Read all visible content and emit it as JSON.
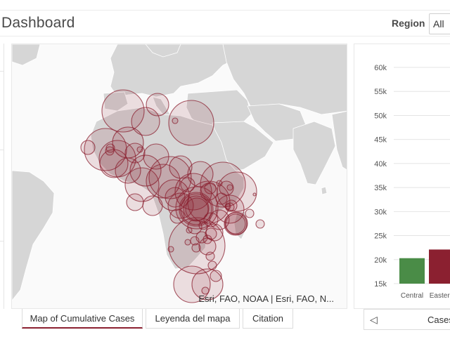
{
  "header": {
    "title": "Dashboard",
    "region_label": "Region",
    "region_value": "All"
  },
  "map": {
    "attribution": "Esri, FAO, NOAA | Esri, FAO, N...",
    "land_color": "#d6d6d6",
    "bubble_fill": "#8b2030",
    "bubble_stroke": "#8b2030"
  },
  "tabs": [
    {
      "label": "Map of Cumulative Cases",
      "active": true
    },
    {
      "label": "Leyenda del mapa",
      "active": false
    },
    {
      "label": "Citation",
      "active": false
    }
  ],
  "chart_tabs": {
    "prev_icon": "triangle-left-icon",
    "label": "Cases"
  },
  "chart_data": {
    "type": "bar",
    "title": "",
    "xlabel": "",
    "ylabel": "",
    "categories": [
      "Central",
      "Eastern"
    ],
    "values": [
      20300,
      22100
    ],
    "colors": [
      "#4a8c47",
      "#8b2030"
    ],
    "yticks": [
      "60k",
      "55k",
      "50k",
      "45k",
      "40k",
      "35k",
      "30k",
      "25k",
      "20k",
      "15k"
    ],
    "ylim": [
      15000,
      60000
    ],
    "grid": true
  }
}
